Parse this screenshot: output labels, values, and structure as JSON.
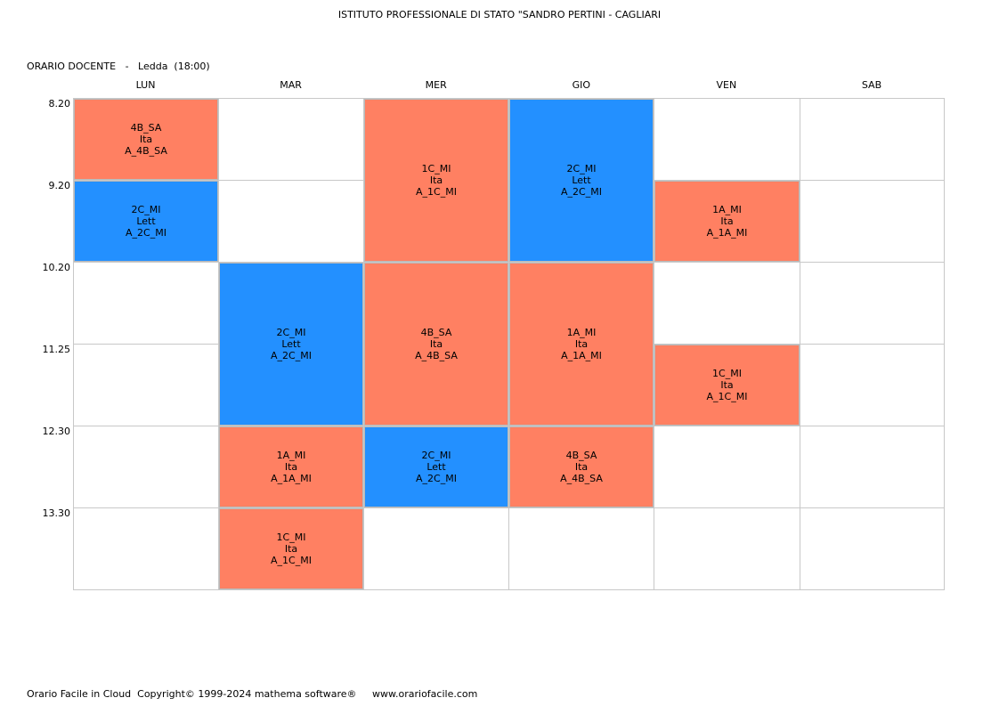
{
  "header": {
    "school": "ISTITUTO PROFESSIONALE DI STATO \"SANDRO PERTINI - CAGLIARI",
    "teacher_line": "ORARIO DOCENTE   -   Ledda  (18:00)"
  },
  "days": [
    "LUN",
    "MAR",
    "MER",
    "GIO",
    "VEN",
    "SAB"
  ],
  "times": [
    "8.20",
    "9.20",
    "10.20",
    "11.25",
    "12.30",
    "13.30"
  ],
  "colors": {
    "Ita": "#FF8062",
    "Lett": "#2390FF"
  },
  "lessons": [
    {
      "day": 0,
      "start": 0,
      "span": 1,
      "cls": "4B_SA",
      "subject": "Ita",
      "room": "A_4B_SA"
    },
    {
      "day": 0,
      "start": 1,
      "span": 1,
      "cls": "2C_MI",
      "subject": "Lett",
      "room": "A_2C_MI"
    },
    {
      "day": 1,
      "start": 2,
      "span": 2,
      "cls": "2C_MI",
      "subject": "Lett",
      "room": "A_2C_MI"
    },
    {
      "day": 1,
      "start": 4,
      "span": 1,
      "cls": "1A_MI",
      "subject": "Ita",
      "room": "A_1A_MI"
    },
    {
      "day": 1,
      "start": 5,
      "span": 1,
      "cls": "1C_MI",
      "subject": "Ita",
      "room": "A_1C_MI"
    },
    {
      "day": 2,
      "start": 0,
      "span": 2,
      "cls": "1C_MI",
      "subject": "Ita",
      "room": "A_1C_MI"
    },
    {
      "day": 2,
      "start": 2,
      "span": 2,
      "cls": "4B_SA",
      "subject": "Ita",
      "room": "A_4B_SA"
    },
    {
      "day": 2,
      "start": 4,
      "span": 1,
      "cls": "2C_MI",
      "subject": "Lett",
      "room": "A_2C_MI"
    },
    {
      "day": 3,
      "start": 0,
      "span": 2,
      "cls": "2C_MI",
      "subject": "Lett",
      "room": "A_2C_MI"
    },
    {
      "day": 3,
      "start": 2,
      "span": 2,
      "cls": "1A_MI",
      "subject": "Ita",
      "room": "A_1A_MI"
    },
    {
      "day": 3,
      "start": 4,
      "span": 1,
      "cls": "4B_SA",
      "subject": "Ita",
      "room": "A_4B_SA"
    },
    {
      "day": 4,
      "start": 1,
      "span": 1,
      "cls": "1A_MI",
      "subject": "Ita",
      "room": "A_1A_MI"
    },
    {
      "day": 4,
      "start": 3,
      "span": 1,
      "cls": "1C_MI",
      "subject": "Ita",
      "room": "A_1C_MI"
    }
  ],
  "footer": "Orario Facile in Cloud  Copyright© 1999-2024 mathema software®     www.orariofacile.com"
}
